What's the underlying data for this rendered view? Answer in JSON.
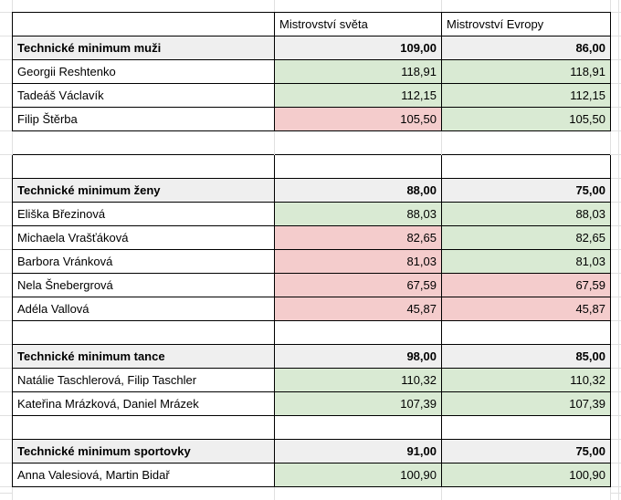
{
  "sheet": {
    "column_headers": {
      "name": "",
      "world": "Mistrovství světa",
      "europe": "Mistrovství Evropy"
    },
    "rows": [
      {
        "type": "colhead",
        "name": "",
        "world": "Mistrovství světa",
        "europe": "Mistrovství Evropy"
      },
      {
        "type": "section",
        "name": "Technické minimum muži",
        "world": "109,00",
        "europe": "86,00"
      },
      {
        "type": "data",
        "name": "Georgii Reshtenko",
        "world": "118,91",
        "europe": "118,91",
        "world_status": "pass",
        "europe_status": "pass"
      },
      {
        "type": "data",
        "name": "Tadeáš Václavík",
        "world": "112,15",
        "europe": "112,15",
        "world_status": "pass",
        "europe_status": "pass"
      },
      {
        "type": "data",
        "name": "Filip Štěrba",
        "world": "105,50",
        "europe": "105,50",
        "world_status": "fail",
        "europe_status": "pass"
      },
      {
        "type": "spacer",
        "name": "",
        "world": "",
        "europe": ""
      },
      {
        "type": "empty",
        "name": "",
        "world": "",
        "europe": ""
      },
      {
        "type": "section",
        "name": "Technické minimum ženy",
        "world": "88,00",
        "europe": "75,00"
      },
      {
        "type": "data",
        "name": "Eliška Březinová",
        "world": "88,03",
        "europe": "88,03",
        "world_status": "pass",
        "europe_status": "pass"
      },
      {
        "type": "data",
        "name": "Michaela Vrašťáková",
        "world": "82,65",
        "europe": "82,65",
        "world_status": "fail",
        "europe_status": "pass"
      },
      {
        "type": "data",
        "name": "Barbora Vránková",
        "world": "81,03",
        "europe": "81,03",
        "world_status": "fail",
        "europe_status": "pass"
      },
      {
        "type": "data",
        "name": "Nela Šnebergrová",
        "world": "67,59",
        "europe": "67,59",
        "world_status": "fail",
        "europe_status": "fail"
      },
      {
        "type": "data",
        "name": "Adéla Vallová",
        "world": "45,87",
        "europe": "45,87",
        "world_status": "fail",
        "europe_status": "fail"
      },
      {
        "type": "empty",
        "name": "",
        "world": "",
        "europe": ""
      },
      {
        "type": "section",
        "name": "Technické minimum tance",
        "world": "98,00",
        "europe": "85,00"
      },
      {
        "type": "data",
        "name": "Natálie Taschlerová, Filip Taschler",
        "world": "110,32",
        "europe": "110,32",
        "world_status": "pass",
        "europe_status": "pass"
      },
      {
        "type": "data",
        "name": "Kateřina Mrázková, Daniel Mrázek",
        "world": "107,39",
        "europe": "107,39",
        "world_status": "pass",
        "europe_status": "pass"
      },
      {
        "type": "empty",
        "name": "",
        "world": "",
        "europe": ""
      },
      {
        "type": "section",
        "name": "Technické minimum sportovky",
        "world": "91,00",
        "europe": "75,00"
      },
      {
        "type": "data",
        "name": "Anna Valesiová, Martin Bidař",
        "world": "100,90",
        "europe": "100,90",
        "world_status": "pass",
        "europe_status": "pass"
      }
    ]
  },
  "colors": {
    "pass_fill": "#d9ead3",
    "fail_fill": "#f4cccc",
    "section_fill": "#efefef",
    "cell_border": "#000000",
    "gridline": "#e0e0e0",
    "text": "#000000",
    "background": "#ffffff"
  }
}
